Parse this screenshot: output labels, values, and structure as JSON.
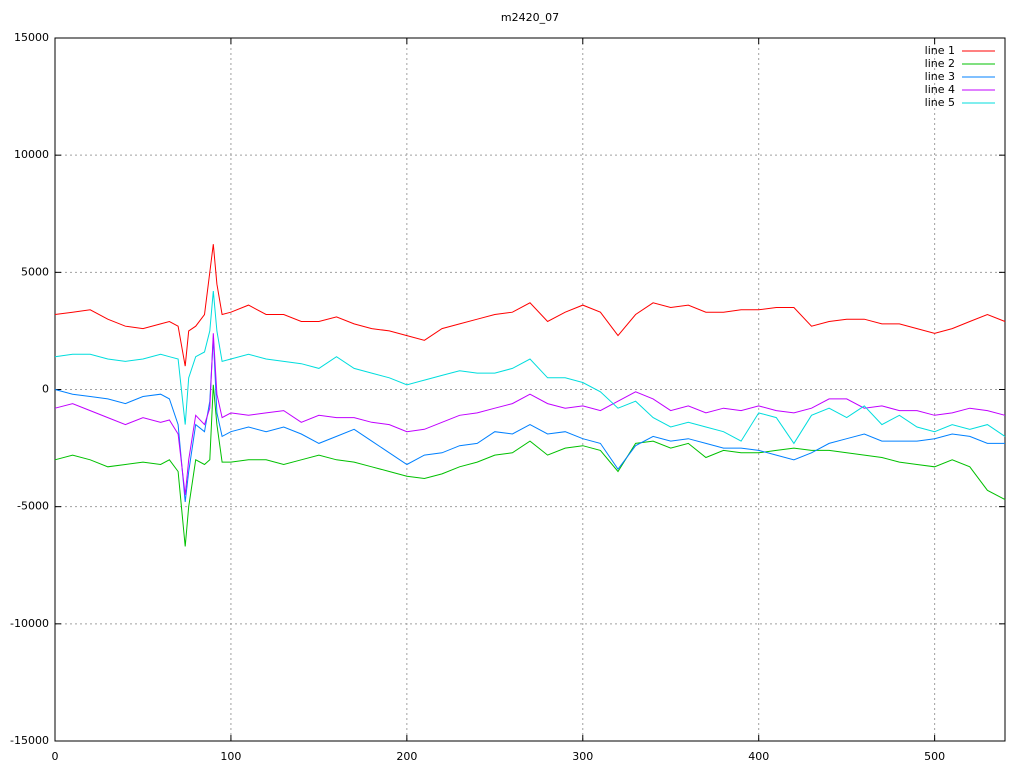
{
  "chart_data": {
    "type": "line",
    "title": "m2420_07",
    "x": [
      0,
      10,
      20,
      30,
      40,
      50,
      60,
      65,
      70,
      74,
      76,
      80,
      85,
      88,
      90,
      92,
      95,
      100,
      110,
      120,
      130,
      140,
      150,
      160,
      170,
      180,
      190,
      200,
      210,
      220,
      230,
      240,
      250,
      260,
      270,
      280,
      290,
      300,
      310,
      320,
      330,
      340,
      350,
      360,
      370,
      380,
      390,
      400,
      410,
      420,
      430,
      440,
      450,
      460,
      470,
      480,
      490,
      500,
      510,
      520,
      530,
      540
    ],
    "series": [
      {
        "name": "line 1",
        "color": "#ff0000",
        "values": [
          3200,
          3300,
          3400,
          3000,
          2700,
          2600,
          2800,
          2900,
          2700,
          1000,
          2500,
          2700,
          3200,
          5000,
          6200,
          4500,
          3200,
          3300,
          3600,
          3200,
          3200,
          2900,
          2900,
          3100,
          2800,
          2600,
          2500,
          2300,
          2100,
          2600,
          2800,
          3000,
          3200,
          3300,
          3700,
          2900,
          3300,
          3600,
          3300,
          2300,
          3200,
          3700,
          3500,
          3600,
          3300,
          3300,
          3400,
          3400,
          3500,
          3500,
          2700,
          2900,
          3000,
          3000,
          2800,
          2800,
          2600,
          2400,
          2600,
          2900,
          3200,
          2900
        ]
      },
      {
        "name": "line 2",
        "color": "#00c000",
        "values": [
          -3000,
          -2800,
          -3000,
          -3300,
          -3200,
          -3100,
          -3200,
          -3000,
          -3500,
          -6700,
          -5000,
          -3000,
          -3200,
          -3000,
          200,
          -1500,
          -3100,
          -3100,
          -3000,
          -3000,
          -3200,
          -3000,
          -2800,
          -3000,
          -3100,
          -3300,
          -3500,
          -3700,
          -3800,
          -3600,
          -3300,
          -3100,
          -2800,
          -2700,
          -2200,
          -2800,
          -2500,
          -2400,
          -2600,
          -3500,
          -2300,
          -2200,
          -2500,
          -2300,
          -2900,
          -2600,
          -2700,
          -2700,
          -2600,
          -2500,
          -2600,
          -2600,
          -2700,
          -2800,
          -2900,
          -3100,
          -3200,
          -3300,
          -3000,
          -3300,
          -4300,
          -4700
        ]
      },
      {
        "name": "line 3",
        "color": "#0080ff",
        "values": [
          0,
          -200,
          -300,
          -400,
          -600,
          -300,
          -200,
          -400,
          -1500,
          -4800,
          -3500,
          -1500,
          -1800,
          -500,
          2200,
          -1000,
          -2000,
          -1800,
          -1600,
          -1800,
          -1600,
          -1900,
          -2300,
          -2000,
          -1700,
          -2200,
          -2700,
          -3200,
          -2800,
          -2700,
          -2400,
          -2300,
          -1800,
          -1900,
          -1500,
          -1900,
          -1800,
          -2100,
          -2300,
          -3400,
          -2400,
          -2000,
          -2200,
          -2100,
          -2300,
          -2500,
          -2500,
          -2600,
          -2800,
          -3000,
          -2700,
          -2300,
          -2100,
          -1900,
          -2200,
          -2200,
          -2200,
          -2100,
          -1900,
          -2000,
          -2300,
          -2300
        ]
      },
      {
        "name": "line 4",
        "color": "#c000ff",
        "values": [
          -800,
          -600,
          -900,
          -1200,
          -1500,
          -1200,
          -1400,
          -1300,
          -1900,
          -4500,
          -3000,
          -1100,
          -1500,
          -800,
          2400,
          -200,
          -1200,
          -1000,
          -1100,
          -1000,
          -900,
          -1400,
          -1100,
          -1200,
          -1200,
          -1400,
          -1500,
          -1800,
          -1700,
          -1400,
          -1100,
          -1000,
          -800,
          -600,
          -200,
          -600,
          -800,
          -700,
          -900,
          -500,
          -100,
          -400,
          -900,
          -700,
          -1000,
          -800,
          -900,
          -700,
          -900,
          -1000,
          -800,
          -400,
          -400,
          -800,
          -700,
          -900,
          -900,
          -1100,
          -1000,
          -800,
          -900,
          -1100
        ]
      },
      {
        "name": "line 5",
        "color": "#00dddd",
        "values": [
          1400,
          1500,
          1500,
          1300,
          1200,
          1300,
          1500,
          1400,
          1300,
          -1500,
          500,
          1400,
          1600,
          2500,
          4200,
          2500,
          1200,
          1300,
          1500,
          1300,
          1200,
          1100,
          900,
          1400,
          900,
          700,
          500,
          200,
          400,
          600,
          800,
          700,
          700,
          900,
          1300,
          500,
          500,
          300,
          -100,
          -800,
          -500,
          -1200,
          -1600,
          -1400,
          -1600,
          -1800,
          -2200,
          -1000,
          -1200,
          -2300,
          -1100,
          -800,
          -1200,
          -700,
          -1500,
          -1100,
          -1600,
          -1800,
          -1500,
          -1700,
          -1500,
          -2000
        ]
      }
    ],
    "xlim": [
      0,
      540
    ],
    "ylim": [
      -15000,
      15000
    ],
    "xticks": [
      0,
      100,
      200,
      300,
      400,
      500
    ],
    "yticks": [
      -15000,
      -10000,
      -5000,
      0,
      5000,
      10000,
      15000
    ],
    "grid": true,
    "legend": "top-right"
  }
}
